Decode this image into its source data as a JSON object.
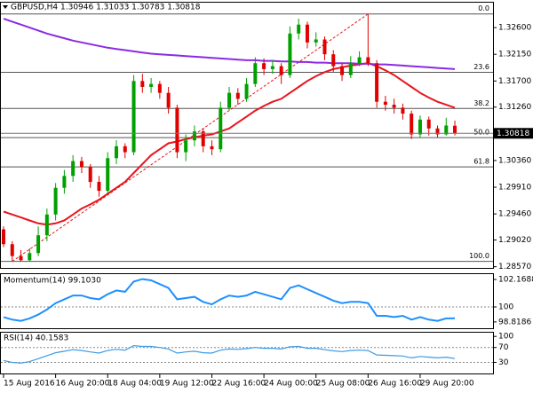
{
  "chart_data": [
    {
      "type": "candlestick",
      "title": "GBPUSD,H4  1.30946 1.31033 1.30783 1.30818",
      "bull_color": "#00a000",
      "bear_color": "#e00000",
      "candles": [
        [
          1.292,
          1.2925,
          1.289,
          1.2895
        ],
        [
          1.2895,
          1.29,
          1.2866,
          1.2875
        ],
        [
          1.2875,
          1.2885,
          1.2866,
          1.2868
        ],
        [
          1.2868,
          1.2888,
          1.2866,
          1.288
        ],
        [
          1.288,
          1.2925,
          1.2875,
          1.291
        ],
        [
          1.291,
          1.2955,
          1.29,
          1.2945
        ],
        [
          1.2945,
          1.2998,
          1.2935,
          1.299
        ],
        [
          1.299,
          1.302,
          1.298,
          1.301
        ],
        [
          1.301,
          1.3045,
          1.3,
          1.3035
        ],
        [
          1.3035,
          1.3042,
          1.3015,
          1.3025
        ],
        [
          1.3025,
          1.303,
          1.299,
          1.3
        ],
        [
          1.3,
          1.301,
          1.2975,
          1.2985
        ],
        [
          1.2985,
          1.305,
          1.298,
          1.304
        ],
        [
          1.304,
          1.307,
          1.303,
          1.306
        ],
        [
          1.306,
          1.3065,
          1.304,
          1.305
        ],
        [
          1.305,
          1.318,
          1.3045,
          1.317
        ],
        [
          1.317,
          1.3182,
          1.315,
          1.316
        ],
        [
          1.316,
          1.3175,
          1.315,
          1.3165
        ],
        [
          1.3165,
          1.317,
          1.314,
          1.315
        ],
        [
          1.315,
          1.316,
          1.3115,
          1.3125
        ],
        [
          1.3125,
          1.313,
          1.304,
          1.305
        ],
        [
          1.305,
          1.308,
          1.3035,
          1.307
        ],
        [
          1.307,
          1.3095,
          1.306,
          1.3085
        ],
        [
          1.3085,
          1.309,
          1.305,
          1.306
        ],
        [
          1.306,
          1.307,
          1.3045,
          1.3055
        ],
        [
          1.3055,
          1.3135,
          1.305,
          1.3125
        ],
        [
          1.3125,
          1.316,
          1.312,
          1.315
        ],
        [
          1.315,
          1.3158,
          1.313,
          1.314
        ],
        [
          1.314,
          1.3175,
          1.3135,
          1.3165
        ],
        [
          1.3165,
          1.321,
          1.316,
          1.32
        ],
        [
          1.32,
          1.3208,
          1.318,
          1.319
        ],
        [
          1.319,
          1.3205,
          1.3182,
          1.3195
        ],
        [
          1.3195,
          1.32,
          1.3165,
          1.318
        ],
        [
          1.318,
          1.3262,
          1.3175,
          1.325
        ],
        [
          1.325,
          1.3275,
          1.324,
          1.3265
        ],
        [
          1.3265,
          1.327,
          1.3225,
          1.3235
        ],
        [
          1.3235,
          1.3252,
          1.3228,
          1.324
        ],
        [
          1.324,
          1.3245,
          1.3205,
          1.3215
        ],
        [
          1.3215,
          1.3222,
          1.3185,
          1.3195
        ],
        [
          1.3195,
          1.32,
          1.317,
          1.318
        ],
        [
          1.318,
          1.3212,
          1.3175,
          1.32
        ],
        [
          1.32,
          1.322,
          1.3195,
          1.321
        ],
        [
          1.321,
          1.3283,
          1.3195,
          1.32
        ],
        [
          1.32,
          1.3205,
          1.3125,
          1.3135
        ],
        [
          1.3135,
          1.3145,
          1.312,
          1.313
        ],
        [
          1.313,
          1.314,
          1.3115,
          1.3125
        ],
        [
          1.3125,
          1.3132,
          1.3105,
          1.3115
        ],
        [
          1.3115,
          1.312,
          1.3072,
          1.308
        ],
        [
          1.308,
          1.3112,
          1.3075,
          1.3105
        ],
        [
          1.3105,
          1.311,
          1.3078,
          1.309
        ],
        [
          1.309,
          1.3095,
          1.3075,
          1.308
        ],
        [
          1.308,
          1.3108,
          1.3078,
          1.3095
        ],
        [
          1.30946,
          1.31033,
          1.30783,
          1.30818
        ]
      ],
      "categories": [
        "15 Aug 2016",
        null,
        null,
        null,
        null,
        null,
        "16 Aug 20:00",
        null,
        null,
        null,
        null,
        null,
        "18 Aug 04:00",
        null,
        null,
        null,
        null,
        null,
        "19 Aug 12:00",
        null,
        null,
        null,
        null,
        null,
        "22 Aug 16:00",
        null,
        null,
        null,
        null,
        null,
        "24 Aug 00:00",
        null,
        null,
        null,
        null,
        null,
        "25 Aug 08:00",
        null,
        null,
        null,
        null,
        null,
        "26 Aug 16:00",
        null,
        null,
        null,
        null,
        null,
        "29 Aug 20:00",
        null,
        null,
        null,
        null
      ],
      "lines": [
        {
          "color": "#e8141c",
          "values": [
            1.295,
            1.2945,
            1.294,
            1.2935,
            1.293,
            1.2928,
            1.293,
            1.2935,
            1.2945,
            1.2955,
            1.2962,
            1.297,
            1.298,
            1.299,
            1.3,
            1.3015,
            1.303,
            1.3045,
            1.3055,
            1.3065,
            1.3068,
            1.3072,
            1.3075,
            1.3078,
            1.308,
            1.3085,
            1.309,
            1.31,
            1.311,
            1.312,
            1.3128,
            1.3135,
            1.314,
            1.315,
            1.316,
            1.317,
            1.3178,
            1.3185,
            1.319,
            1.3193,
            1.3196,
            1.3198,
            1.32,
            1.3195,
            1.3188,
            1.318,
            1.317,
            1.316,
            1.315,
            1.3142,
            1.3135,
            1.313,
            1.3125
          ]
        },
        {
          "color": "#8a2be2",
          "values": [
            1.3275,
            1.327,
            1.3265,
            1.326,
            1.3255,
            1.325,
            1.3246,
            1.3242,
            1.3238,
            1.3235,
            1.3232,
            1.3229,
            1.3226,
            1.3224,
            1.3222,
            1.322,
            1.3218,
            1.3216,
            1.3215,
            1.3214,
            1.3213,
            1.3212,
            1.3211,
            1.321,
            1.3209,
            1.3208,
            1.3207,
            1.3206,
            1.3205,
            1.3205,
            1.3204,
            1.3204,
            1.3203,
            1.3203,
            1.3202,
            1.3202,
            1.3201,
            1.3201,
            1.32,
            1.32,
            1.32,
            1.3199,
            1.3199,
            1.3198,
            1.3198,
            1.3197,
            1.3196,
            1.3195,
            1.3194,
            1.3193,
            1.3192,
            1.3191,
            1.319
          ]
        }
      ],
      "fib_levels": [
        {
          "value": 1.3283,
          "label": "0.0"
        },
        {
          "value": 1.31846,
          "label": "23.6"
        },
        {
          "value": 1.31237,
          "label": "38.2"
        },
        {
          "value": 1.30745,
          "label": "50.0"
        },
        {
          "value": 1.30253,
          "label": "61.8"
        },
        {
          "value": 1.2866,
          "label": "100.0"
        }
      ],
      "ylim": [
        1.2855,
        1.3302
      ],
      "yticks": [
        {
          "value": 1.326,
          "label": "1.32600"
        },
        {
          "value": 1.3215,
          "label": "1.32150"
        },
        {
          "value": 1.317,
          "label": "1.31700"
        },
        {
          "value": 1.3126,
          "label": "1.31260"
        },
        {
          "value": 1.3036,
          "label": "1.30360"
        },
        {
          "value": 1.2991,
          "label": "1.29910"
        },
        {
          "value": 1.2946,
          "label": "1.29460"
        },
        {
          "value": 1.2902,
          "label": "1.29020"
        },
        {
          "value": 1.2857,
          "label": "1.28570"
        }
      ]
    },
    {
      "type": "line",
      "title": "Momentum(14) 99.1030",
      "color": "#1e90ff",
      "values": [
        99.2,
        99.0,
        98.9,
        99.1,
        99.4,
        99.8,
        100.3,
        100.6,
        100.9,
        100.9,
        100.7,
        100.6,
        101.0,
        101.3,
        101.2,
        102.0,
        102.2,
        102.1,
        101.8,
        101.5,
        100.6,
        100.7,
        100.8,
        100.4,
        100.2,
        100.6,
        100.9,
        100.8,
        100.9,
        101.2,
        101.0,
        100.8,
        100.6,
        101.5,
        101.7,
        101.4,
        101.1,
        100.8,
        100.5,
        100.3,
        100.4,
        100.4,
        100.3,
        99.3,
        99.3,
        99.2,
        99.3,
        99.0,
        99.2,
        99.0,
        98.9,
        99.1,
        99.103
      ],
      "levels": [
        100
      ],
      "ylim": [
        98.32,
        102.59
      ],
      "yticks": [
        102.1688,
        100,
        98.8186
      ]
    },
    {
      "type": "line",
      "title": "RSI(14) 40.1583",
      "color": "#3c9be6",
      "values": [
        35,
        30,
        28,
        32,
        40,
        48,
        56,
        60,
        64,
        62,
        58,
        55,
        62,
        65,
        63,
        75,
        73,
        73,
        70,
        66,
        55,
        58,
        60,
        56,
        55,
        63,
        66,
        65,
        67,
        70,
        68,
        68,
        66,
        72,
        73,
        68,
        68,
        64,
        61,
        59,
        62,
        63,
        62,
        50,
        49,
        48,
        47,
        42,
        46,
        44,
        42,
        44,
        40.1583
      ],
      "levels": [
        70,
        30
      ],
      "ylim": [
        0,
        110
      ],
      "yticks": [
        100,
        70,
        30
      ]
    }
  ]
}
